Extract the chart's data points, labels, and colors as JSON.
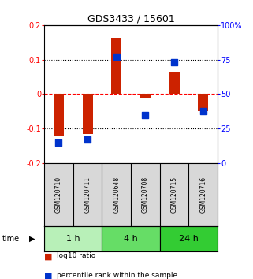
{
  "title": "GDS3433 / 15601",
  "samples": [
    "GSM120710",
    "GSM120711",
    "GSM120648",
    "GSM120708",
    "GSM120715",
    "GSM120716"
  ],
  "groups": [
    {
      "label": "1 h",
      "indices": [
        0,
        1
      ],
      "color": "#b8f0b8"
    },
    {
      "label": "4 h",
      "indices": [
        2,
        3
      ],
      "color": "#66dd66"
    },
    {
      "label": "24 h",
      "indices": [
        4,
        5
      ],
      "color": "#33cc33"
    }
  ],
  "log10_ratio": [
    -0.12,
    -0.115,
    0.163,
    -0.01,
    0.065,
    -0.05
  ],
  "percentile_rank": [
    15,
    17,
    77,
    35,
    73,
    38
  ],
  "ylim_left": [
    -0.2,
    0.2
  ],
  "ylim_right": [
    0,
    100
  ],
  "yticks_left": [
    -0.2,
    -0.1,
    0.0,
    0.1,
    0.2
  ],
  "ytick_labels_left": [
    "-0.2",
    "-0.1",
    "0",
    "0.1",
    "0.2"
  ],
  "yticks_right": [
    0,
    25,
    50,
    75,
    100
  ],
  "ytick_labels_right": [
    "0",
    "25",
    "50",
    "75",
    "100%"
  ],
  "hlines": [
    0.1,
    0.0,
    -0.1
  ],
  "hline_styles": [
    "dotted",
    "dashed",
    "dotted"
  ],
  "hline_colors": [
    "black",
    "red",
    "black"
  ],
  "bar_color_red": "#cc2200",
  "bar_color_blue": "#0033cc",
  "bar_width": 0.35,
  "dot_size": 28,
  "bg_color": "#d8d8d8",
  "plot_bg": "#ffffff"
}
